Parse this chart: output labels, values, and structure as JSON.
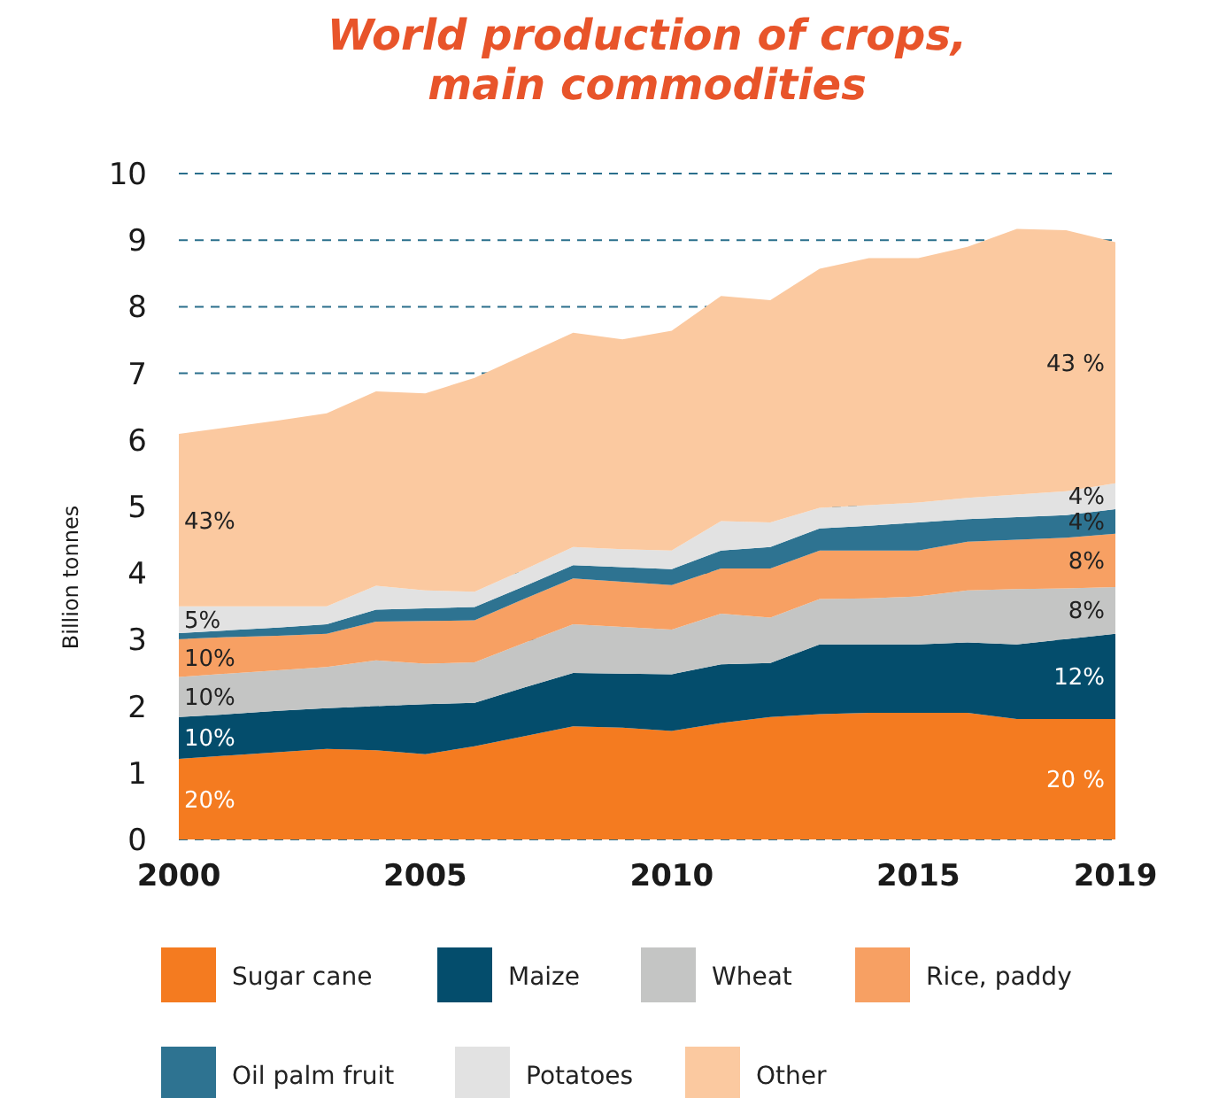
{
  "chart_data": {
    "type": "area",
    "stacked": true,
    "title": "World production of crops,\nmain commodities",
    "ylabel": "Billion tonnes",
    "x": [
      2000,
      2001,
      2002,
      2003,
      2004,
      2005,
      2006,
      2007,
      2008,
      2009,
      2010,
      2011,
      2012,
      2013,
      2014,
      2015,
      2016,
      2017,
      2018,
      2019
    ],
    "xlim": [
      2000,
      2019
    ],
    "xticks": [
      2000,
      2005,
      2010,
      2015,
      2019
    ],
    "ylim": [
      0,
      10
    ],
    "yticks": [
      0,
      1,
      2,
      3,
      4,
      5,
      6,
      7,
      8,
      9,
      10
    ],
    "grid": "y",
    "legend": "bottom",
    "series": [
      {
        "name": "Sugar cane",
        "color": "#f47b20",
        "values": [
          1.21,
          1.26,
          1.31,
          1.36,
          1.34,
          1.28,
          1.4,
          1.55,
          1.7,
          1.68,
          1.63,
          1.75,
          1.84,
          1.88,
          1.9,
          1.9,
          1.9,
          1.81,
          1.81,
          1.81
        ]
      },
      {
        "name": "Maize",
        "color": "#044d6c",
        "values": [
          0.63,
          0.62,
          0.62,
          0.61,
          0.66,
          0.75,
          0.65,
          0.73,
          0.8,
          0.81,
          0.85,
          0.88,
          0.81,
          1.05,
          1.03,
          1.03,
          1.06,
          1.12,
          1.2,
          1.28
        ]
      },
      {
        "name": "Wheat",
        "color": "#c4c5c4",
        "values": [
          0.6,
          0.61,
          0.61,
          0.62,
          0.69,
          0.61,
          0.61,
          0.67,
          0.73,
          0.7,
          0.67,
          0.76,
          0.68,
          0.68,
          0.69,
          0.72,
          0.78,
          0.83,
          0.76,
          0.7
        ]
      },
      {
        "name": "Rice, paddy",
        "color": "#f7a063",
        "values": [
          0.57,
          0.55,
          0.52,
          0.5,
          0.58,
          0.64,
          0.63,
          0.66,
          0.69,
          0.68,
          0.67,
          0.68,
          0.74,
          0.73,
          0.72,
          0.69,
          0.73,
          0.74,
          0.76,
          0.8
        ]
      },
      {
        "name": "Oil palm fruit",
        "color": "#2e7391",
        "values": [
          0.09,
          0.1,
          0.12,
          0.14,
          0.18,
          0.19,
          0.2,
          0.19,
          0.2,
          0.22,
          0.24,
          0.27,
          0.32,
          0.33,
          0.37,
          0.42,
          0.34,
          0.34,
          0.34,
          0.37
        ]
      },
      {
        "name": "Potatoes",
        "color": "#e2e2e2",
        "values": [
          0.4,
          0.36,
          0.32,
          0.27,
          0.36,
          0.27,
          0.23,
          0.25,
          0.27,
          0.27,
          0.28,
          0.44,
          0.37,
          0.31,
          0.31,
          0.3,
          0.32,
          0.34,
          0.36,
          0.39
        ]
      },
      {
        "name": "Other",
        "color": "#fbc9a0",
        "values": [
          2.59,
          2.69,
          2.79,
          2.9,
          2.92,
          2.96,
          3.21,
          3.22,
          3.22,
          3.15,
          3.3,
          3.38,
          3.34,
          3.59,
          3.71,
          3.67,
          3.77,
          3.99,
          3.92,
          3.62
        ]
      }
    ],
    "annotations": [
      "20%",
      "10%",
      "10%",
      "10%",
      "5%",
      "43%",
      "20 %",
      "12%",
      "8%",
      "8%",
      "4%",
      "4%",
      "43 %"
    ]
  }
}
